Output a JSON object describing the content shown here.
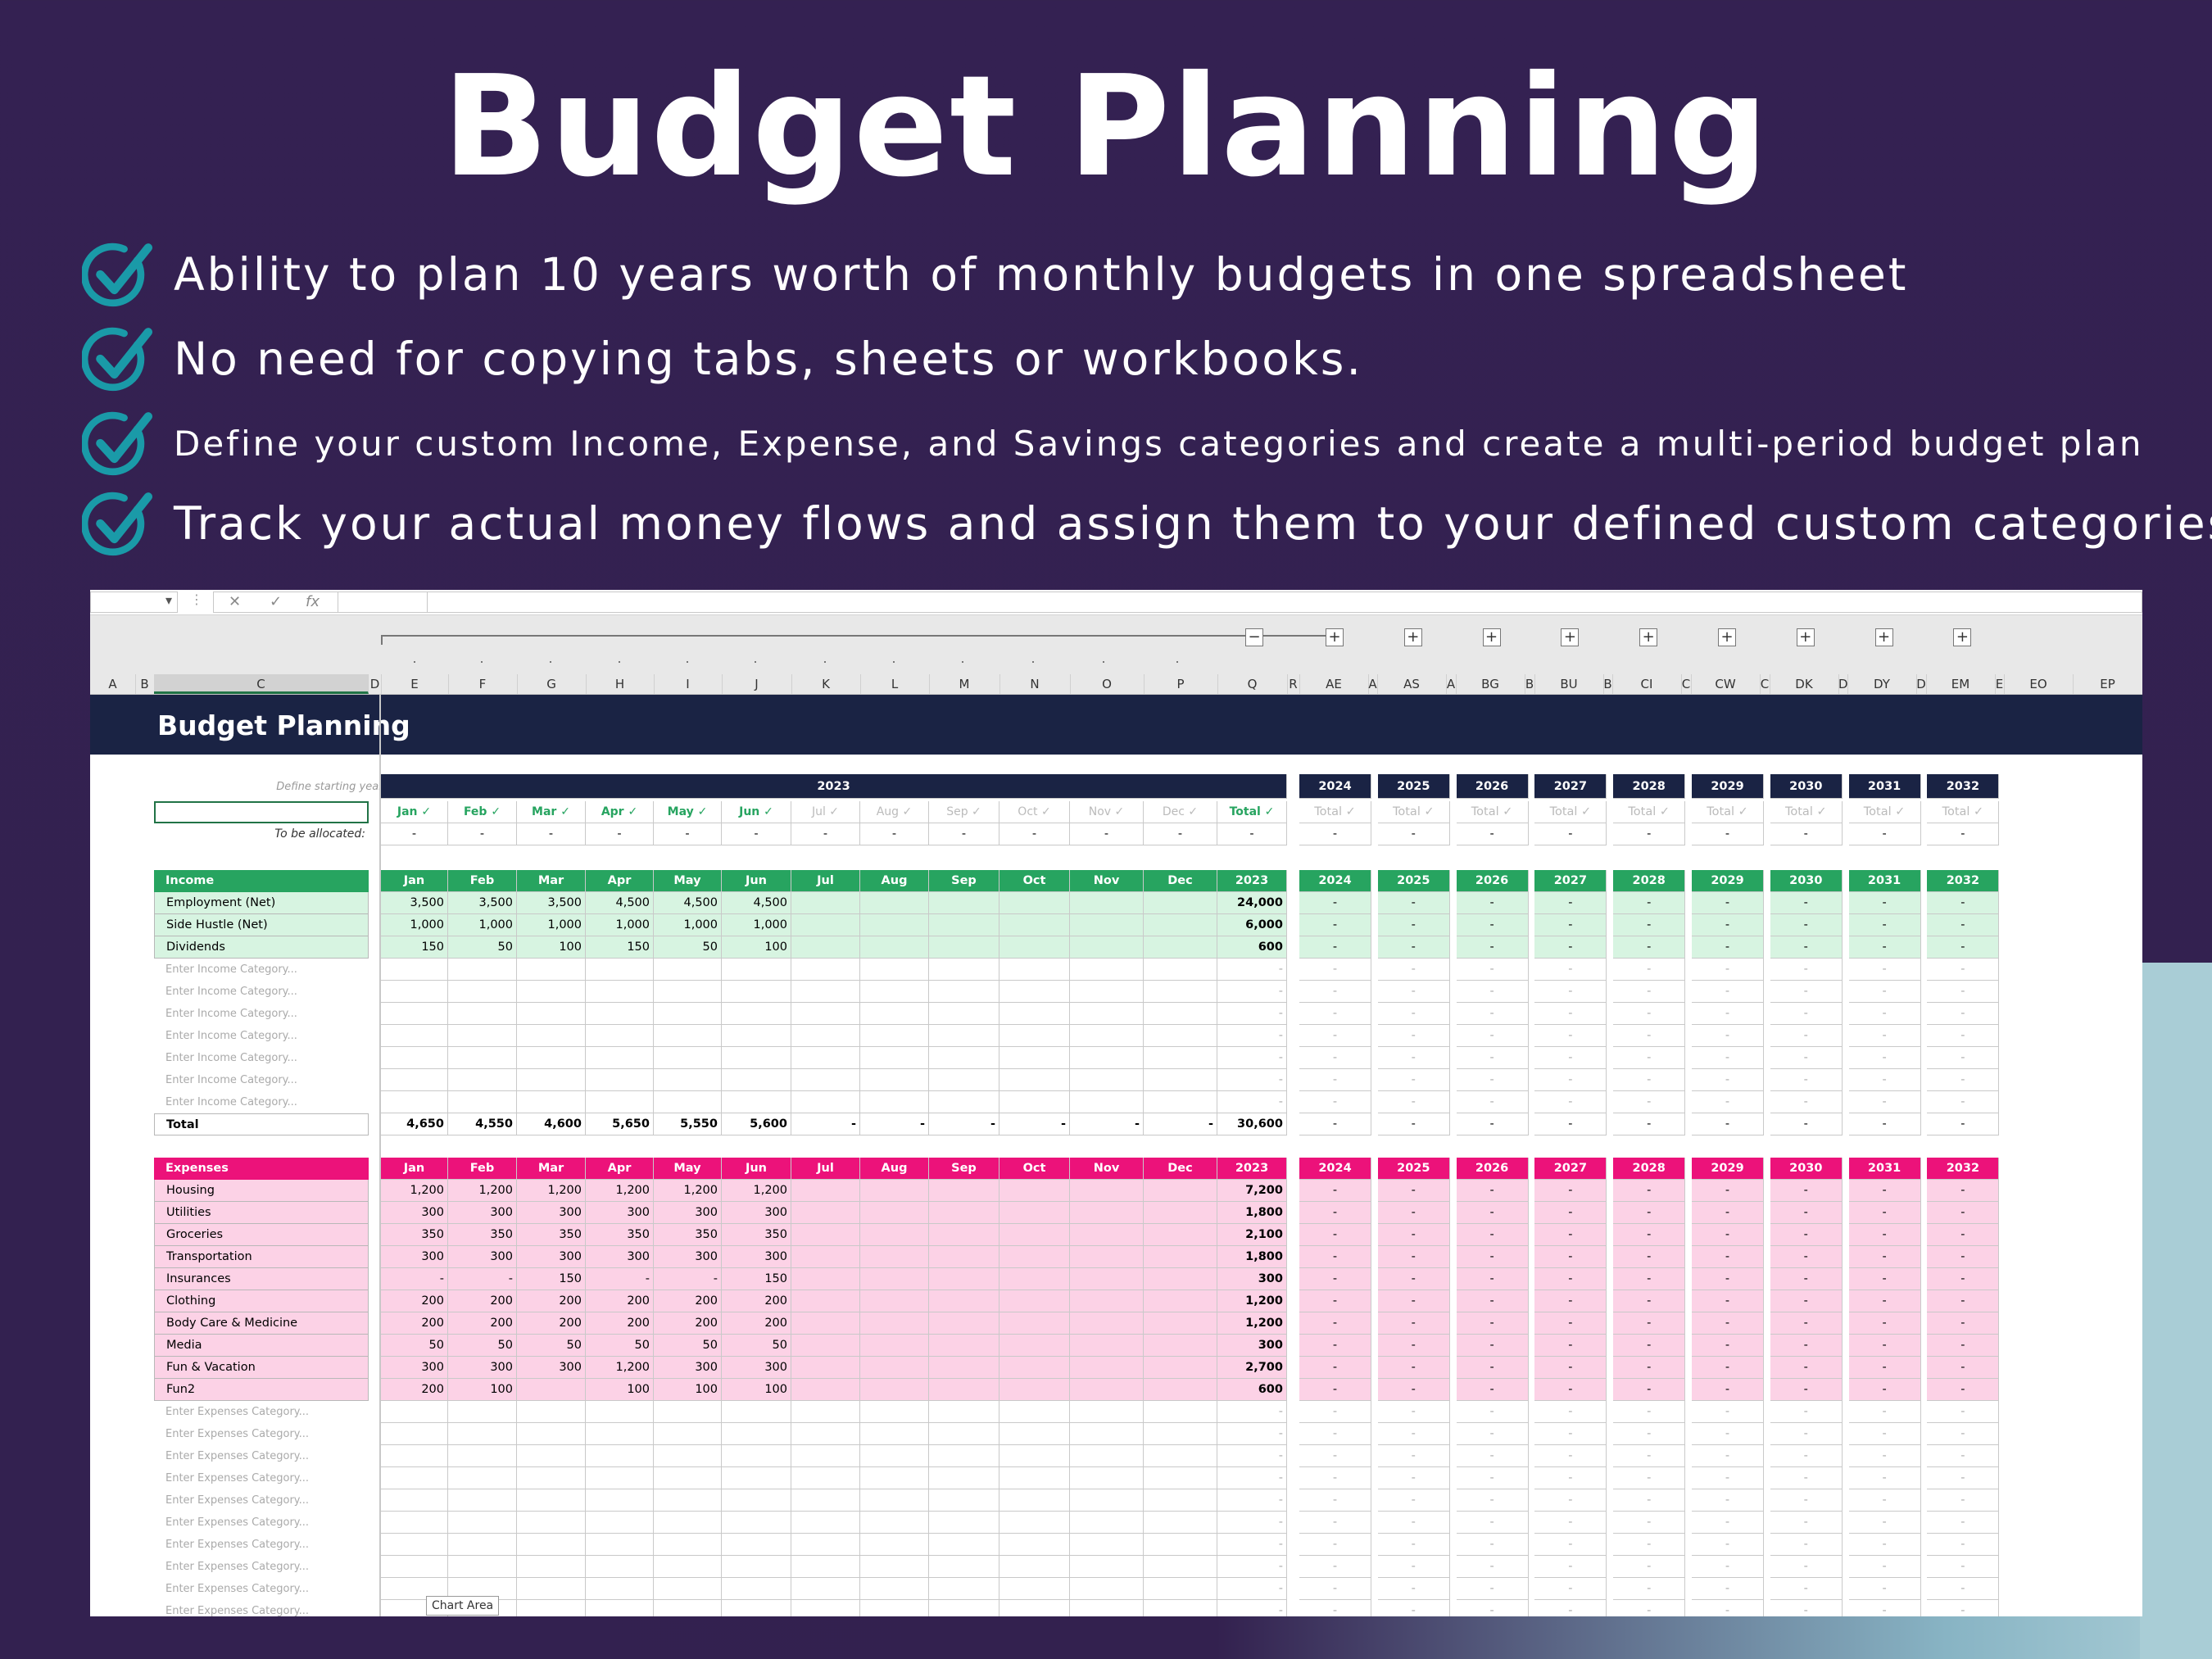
{
  "hero": {
    "title": "Budget Planning",
    "bullets": [
      "Ability to plan 10 years worth of monthly budgets in one spreadsheet",
      "No need for copying tabs, sheets or workbooks.",
      "Define your custom Income, Expense, and Savings categories and create a multi-period budget plan",
      "Track your actual money flows and assign them to your defined custom categories"
    ]
  },
  "colors": {
    "income": "#27a460",
    "expense": "#ec127a",
    "navy": "#1a2344",
    "check": "#1a9aa8"
  },
  "formula_bar": {
    "fx": "fx",
    "cancel": "✕",
    "enter": "✓",
    "dropdown": "▾",
    "dots": "⋮"
  },
  "col_letters": [
    "A",
    "B",
    "C",
    "D",
    "E",
    "F",
    "G",
    "H",
    "I",
    "J",
    "K",
    "L",
    "M",
    "N",
    "O",
    "P",
    "Q",
    "R",
    "AE",
    "A",
    "AS",
    "A",
    "BG",
    "B",
    "BU",
    "B",
    "CI",
    "C",
    "CW",
    "C",
    "DK",
    "D",
    "DY",
    "D",
    "EM",
    "E",
    "EO",
    "EP"
  ],
  "group_buttons": {
    "minus": "−",
    "plus": "+"
  },
  "sheet": {
    "title": "Budget Planning",
    "hint": "Define starting year in Settings →",
    "to_be_allocated": "To be allocated:",
    "year_band": "2023",
    "future_years": [
      "2024",
      "2025",
      "2026",
      "2027",
      "2028",
      "2029",
      "2030",
      "2031",
      "2032"
    ],
    "check_row": [
      "Jan ✓",
      "Feb ✓",
      "Mar ✓",
      "Apr ✓",
      "May ✓",
      "Jun ✓",
      "Jul ✓",
      "Aug ✓",
      "Sep ✓",
      "Oct ✓",
      "Nov ✓",
      "Dec ✓",
      "Total ✓"
    ],
    "check_future": "Total ✓",
    "alloc_values": [
      "-",
      "-",
      "-",
      "-",
      "-",
      "-",
      "-",
      "-",
      "-",
      "-",
      "-",
      "-",
      "-"
    ],
    "months": [
      "Jan",
      "Feb",
      "Mar",
      "Apr",
      "May",
      "Jun",
      "Jul",
      "Aug",
      "Sep",
      "Oct",
      "Nov",
      "Dec",
      "2023"
    ],
    "dash": "-",
    "income": {
      "header": "Income",
      "rows": [
        {
          "label": "Employment (Net)",
          "values": [
            "3,500",
            "3,500",
            "3,500",
            "4,500",
            "4,500",
            "4,500",
            "",
            "",
            "",
            "",
            "",
            "",
            "24,000"
          ]
        },
        {
          "label": "Side Hustle (Net)",
          "values": [
            "1,000",
            "1,000",
            "1,000",
            "1,000",
            "1,000",
            "1,000",
            "",
            "",
            "",
            "",
            "",
            "",
            "6,000"
          ]
        },
        {
          "label": "Dividends",
          "values": [
            "150",
            "50",
            "100",
            "150",
            "50",
            "100",
            "",
            "",
            "",
            "",
            "",
            "",
            "600"
          ]
        }
      ],
      "placeholder": "Enter Income Category...",
      "placeholder_count": 7,
      "total": {
        "label": "Total",
        "values": [
          "4,650",
          "4,550",
          "4,600",
          "5,650",
          "5,550",
          "5,600",
          "-",
          "-",
          "-",
          "-",
          "-",
          "-",
          "30,600"
        ]
      }
    },
    "expenses": {
      "header": "Expenses",
      "rows": [
        {
          "label": "Housing",
          "values": [
            "1,200",
            "1,200",
            "1,200",
            "1,200",
            "1,200",
            "1,200",
            "",
            "",
            "",
            "",
            "",
            "",
            "7,200"
          ]
        },
        {
          "label": "Utilities",
          "values": [
            "300",
            "300",
            "300",
            "300",
            "300",
            "300",
            "",
            "",
            "",
            "",
            "",
            "",
            "1,800"
          ]
        },
        {
          "label": "Groceries",
          "values": [
            "350",
            "350",
            "350",
            "350",
            "350",
            "350",
            "",
            "",
            "",
            "",
            "",
            "",
            "2,100"
          ]
        },
        {
          "label": "Transportation",
          "values": [
            "300",
            "300",
            "300",
            "300",
            "300",
            "300",
            "",
            "",
            "",
            "",
            "",
            "",
            "1,800"
          ]
        },
        {
          "label": "Insurances",
          "values": [
            "-",
            "-",
            "150",
            "-",
            "-",
            "150",
            "",
            "",
            "",
            "",
            "",
            "",
            "300"
          ]
        },
        {
          "label": "Clothing",
          "values": [
            "200",
            "200",
            "200",
            "200",
            "200",
            "200",
            "",
            "",
            "",
            "",
            "",
            "",
            "1,200"
          ]
        },
        {
          "label": "Body Care & Medicine",
          "values": [
            "200",
            "200",
            "200",
            "200",
            "200",
            "200",
            "",
            "",
            "",
            "",
            "",
            "",
            "1,200"
          ]
        },
        {
          "label": "Media",
          "values": [
            "50",
            "50",
            "50",
            "50",
            "50",
            "50",
            "",
            "",
            "",
            "",
            "",
            "",
            "300"
          ]
        },
        {
          "label": "Fun & Vacation",
          "values": [
            "300",
            "300",
            "300",
            "1,200",
            "300",
            "300",
            "",
            "",
            "",
            "",
            "",
            "",
            "2,700"
          ]
        },
        {
          "label": "Fun2",
          "values": [
            "200",
            "100",
            "",
            "100",
            "100",
            "100",
            "",
            "",
            "",
            "",
            "",
            "",
            "600"
          ]
        }
      ],
      "placeholder": "Enter Expenses Category...",
      "placeholder_count": 10
    },
    "chart_area": "Chart Area"
  }
}
